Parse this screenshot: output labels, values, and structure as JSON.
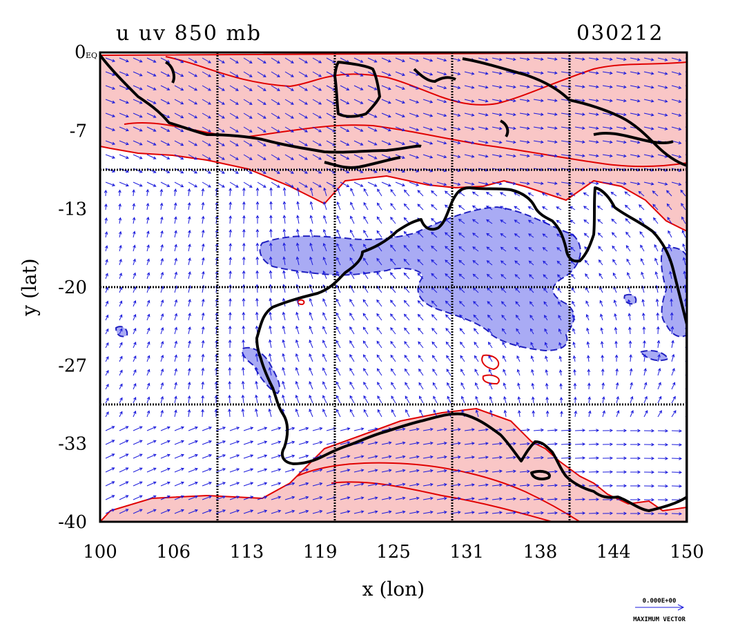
{
  "title": {
    "left": "u uv 850 mb",
    "right": "030212"
  },
  "corner_tick_label": "0",
  "corner_tick_suffix": "EQ",
  "axes": {
    "xlabel": "x (lon)",
    "ylabel": "y (lat)",
    "x_ticks": [
      "100",
      "106",
      "113",
      "119",
      "125",
      "131",
      "138",
      "144",
      "150"
    ],
    "y_ticks": [
      "-7",
      "-13",
      "-20",
      "-27",
      "-33",
      "-40"
    ],
    "xlim": [
      100,
      150
    ],
    "ylim": [
      -40,
      0
    ]
  },
  "reference_vector": {
    "value": "0.000E+00",
    "caption": "MAXIMUM VECTOR"
  },
  "colors": {
    "positive_fill": "#f9c6c6",
    "positive_contour": "#e00000",
    "negative_fill": "#a9abf4",
    "negative_contour": "#2020c0",
    "vector": "#1a1adc",
    "coast": "#000000",
    "grid": "#000000"
  },
  "chart_data": {
    "type": "map",
    "field": "u uv 850 mb",
    "date": "030212",
    "xlabel": "x (lon)",
    "ylabel": "y (lat)",
    "x_range": [
      100,
      150
    ],
    "y_range": [
      -40,
      0
    ],
    "x_ticks": [
      100,
      106,
      113,
      119,
      125,
      131,
      138,
      144,
      150
    ],
    "y_ticks": [
      0,
      -7,
      -13,
      -20,
      -27,
      -33,
      -40
    ],
    "grid_lines_lon": [
      110,
      120,
      130,
      140
    ],
    "grid_lines_lat": [
      -10,
      -20,
      -30
    ],
    "shading": "positive u shaded red (north band and south band), negative u shaded blue (central Australia)",
    "vectors": "wind vectors (uv) plotted in blue over the domain"
  }
}
